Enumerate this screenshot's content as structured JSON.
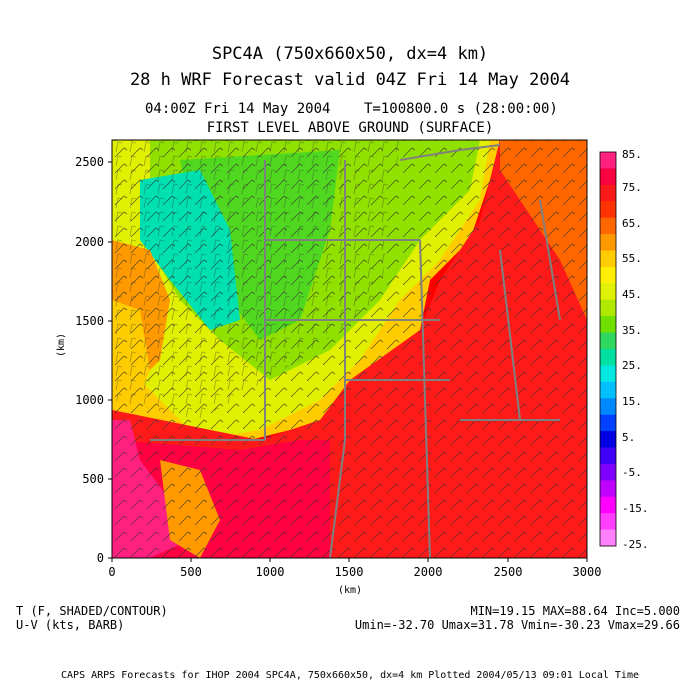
{
  "title": {
    "line1": "SPC4A (750x660x50, dx=4 km)",
    "line2": "28 h WRF Forecast valid 04Z Fri 14 May 2004"
  },
  "subtitle": {
    "valid_time": "04:00Z Fri 14 May 2004",
    "model_time": "T=100800.0 s (28:00:00)",
    "level": "FIRST LEVEL ABOVE GROUND (SURFACE)"
  },
  "axes": {
    "x_ticks": [
      "0",
      "500",
      "1000",
      "1500",
      "2000",
      "2500",
      "3000"
    ],
    "y_ticks": [
      "0",
      "500",
      "1000",
      "1500",
      "2000",
      "2500"
    ],
    "x_label": "(km)",
    "y_label": "(km)",
    "x_range": [
      0,
      3000
    ],
    "y_range": [
      0,
      2640
    ]
  },
  "colorbar": {
    "labels": [
      "85.",
      "75.",
      "65.",
      "55.",
      "45.",
      "35.",
      "25.",
      "15.",
      "5.",
      "-5.",
      "-15.",
      "-25."
    ],
    "colors": [
      "#ff2080",
      "#ff0040",
      "#ff1a1a",
      "#ff3300",
      "#ff6600",
      "#ff9900",
      "#ffcc00",
      "#ffee00",
      "#e0f000",
      "#b0e800",
      "#70e000",
      "#30d860",
      "#00e0a0",
      "#00e8e0",
      "#00c0ff",
      "#0088ff",
      "#0040ff",
      "#0000e0",
      "#4000ff",
      "#8000ff",
      "#c000ff",
      "#ff00ff",
      "#ff40ff",
      "#ff80ff"
    ]
  },
  "legend": {
    "shaded": "T (F, SHADED/CONTOUR)",
    "vectors": "U-V (kts, BARB)",
    "stats": "MIN=19.15 MAX=88.64 Inc=5.000",
    "wind_stats": "Umin=-32.70 Umax=31.78 Vmin=-30.23 Vmax=29.66"
  },
  "footer": "CAPS ARPS Forecasts for IHOP 2004  SPC4A, 750x660x50, dx=4 km  Plotted 2004/05/13 09:01 Local Time"
}
